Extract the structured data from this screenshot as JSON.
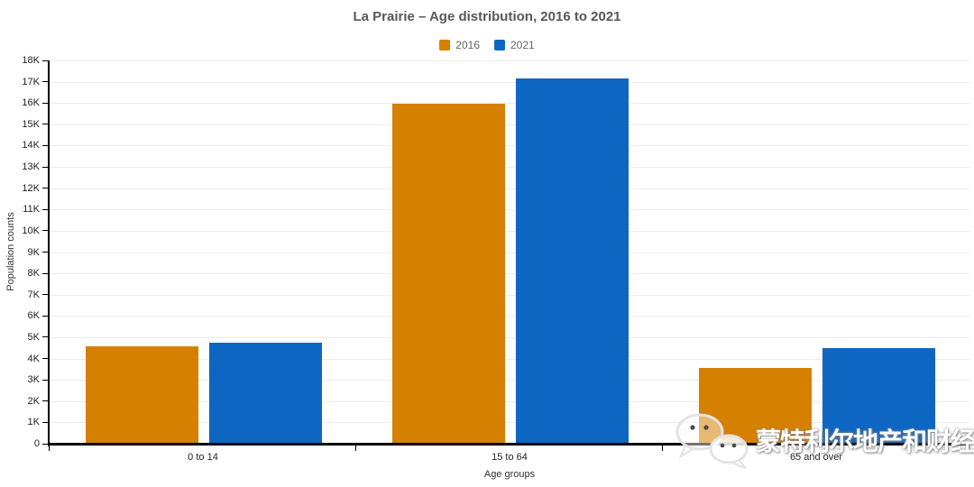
{
  "chart_data": {
    "type": "bar",
    "title": "La Prairie – Age distribution, 2016 to 2021",
    "categories": [
      "0 to 14",
      "15 to 64",
      "65 and over"
    ],
    "series": [
      {
        "name": "2016",
        "color": "#d68000",
        "values": [
          4565,
          15975,
          3570
        ]
      },
      {
        "name": "2021",
        "color": "#0d66c2",
        "values": [
          4755,
          17140,
          4505
        ]
      }
    ],
    "xlabel": "Age groups",
    "ylabel": "Population counts",
    "ylim": [
      0,
      18000
    ],
    "ytick_step": 1000,
    "ytick_labels": [
      "0",
      "1K",
      "2K",
      "3K",
      "4K",
      "5K",
      "6K",
      "7K",
      "8K",
      "9K",
      "10K",
      "11K",
      "12K",
      "13K",
      "14K",
      "15K",
      "16K",
      "17K",
      "18K"
    ],
    "legend_position": "top",
    "grid": true
  },
  "watermark": {
    "text": "蒙特利尔地产和财经",
    "icon": "wechat-icon"
  },
  "colors": {
    "axis": "#000000",
    "gridline": "#ececec",
    "title_text": "#58585a",
    "tick_text": "#222222",
    "legend_text": "#666666"
  }
}
